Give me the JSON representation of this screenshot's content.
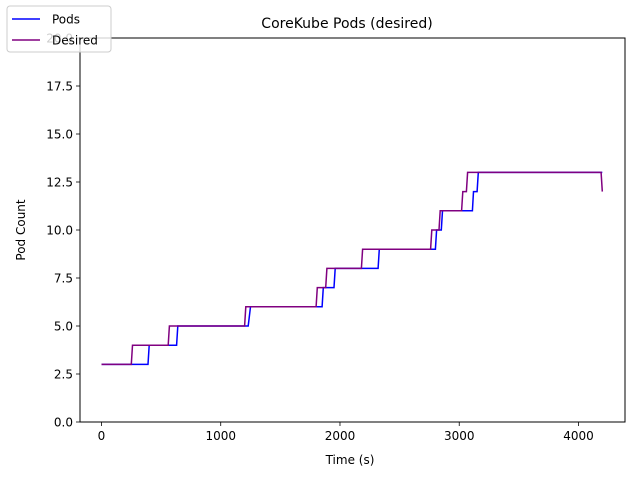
{
  "chart_data": {
    "type": "line",
    "title": "CoreKube Pods (desired)",
    "xlabel": "Time (s)",
    "ylabel": "Pod Count",
    "xlim": [
      -180,
      4390
    ],
    "ylim": [
      0,
      20
    ],
    "xticks": [
      0,
      1000,
      2000,
      3000,
      4000
    ],
    "xtick_labels": [
      "0",
      "1000",
      "2000",
      "3000",
      "4000"
    ],
    "yticks": [
      0,
      2.5,
      5,
      7.5,
      10,
      12.5,
      15,
      17.5,
      20
    ],
    "ytick_labels": [
      "0.0",
      "2.5",
      "5.0",
      "7.5",
      "10.0",
      "12.5",
      "15.0",
      "17.5",
      "20.0"
    ],
    "grid": false,
    "legend_position": "top-left",
    "series": [
      {
        "name": "Pods",
        "color": "#0000ff",
        "x": [
          0,
          390,
          400,
          630,
          640,
          1230,
          1250,
          1850,
          1860,
          1950,
          1960,
          2320,
          2330,
          2800,
          2810,
          2850,
          2860,
          3110,
          3120,
          3150,
          3160,
          4200
        ],
        "y": [
          3,
          3,
          4,
          4,
          5,
          5,
          6,
          6,
          7,
          7,
          8,
          8,
          9,
          9,
          10,
          10,
          11,
          11,
          12,
          12,
          13,
          13
        ]
      },
      {
        "name": "Desired",
        "color": "#800080",
        "x": [
          0,
          250,
          260,
          560,
          570,
          1200,
          1210,
          1800,
          1810,
          1880,
          1890,
          2180,
          2190,
          2760,
          2770,
          2830,
          2840,
          3020,
          3030,
          3060,
          3070,
          4190,
          4200
        ],
        "y": [
          3,
          3,
          4,
          4,
          5,
          5,
          6,
          6,
          7,
          7,
          8,
          8,
          9,
          9,
          10,
          10,
          11,
          11,
          12,
          12,
          13,
          13,
          12
        ]
      }
    ]
  }
}
